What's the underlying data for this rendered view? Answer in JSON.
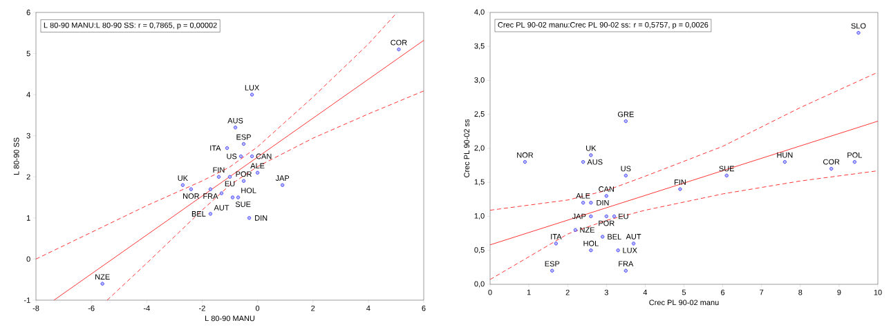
{
  "chart_data": [
    {
      "type": "scatter",
      "xlabel": "L 80-90 MANU",
      "ylabel": "L 80-90 SS",
      "xlim": [
        -8,
        6
      ],
      "ylim": [
        -1,
        6
      ],
      "xticks": [
        -8,
        -6,
        -4,
        -2,
        0,
        2,
        4,
        6
      ],
      "yticks": [
        -1,
        0,
        1,
        2,
        3,
        4,
        5,
        6
      ],
      "marker": "circle",
      "annotations": [
        "L 80-90 MANU:L 80-90 SS:    r = 0,7865, p = 0,00002",
        {
          "text": "COR",
          "x": 5.1,
          "y": 5.1
        },
        {
          "text": "LUX",
          "x": -0.2,
          "y": 4.0
        },
        {
          "text": "AUS",
          "x": -0.8,
          "y": 3.2
        },
        {
          "text": "ESP",
          "x": -0.5,
          "y": 2.8
        },
        {
          "text": "ITA",
          "x": -1.1,
          "y": 2.7
        },
        {
          "text": "US",
          "x": -0.6,
          "y": 2.5
        },
        {
          "text": "CAN",
          "x": -0.2,
          "y": 2.5
        },
        {
          "text": "ALE",
          "x": 0.0,
          "y": 2.1
        },
        {
          "text": "JAP",
          "x": 0.9,
          "y": 1.8
        },
        {
          "text": "FIN",
          "x": -1.4,
          "y": 2.0
        },
        {
          "text": "EU",
          "x": -1.0,
          "y": 2.0
        },
        {
          "text": "POR",
          "x": -0.5,
          "y": 1.9
        },
        {
          "text": "UK",
          "x": -2.7,
          "y": 1.8
        },
        {
          "text": "NOR",
          "x": -2.4,
          "y": 1.7
        },
        {
          "text": "FRA",
          "x": -1.7,
          "y": 1.7
        },
        {
          "text": "AUT",
          "x": -1.3,
          "y": 1.6
        },
        {
          "text": "SUE",
          "x": -0.9,
          "y": 1.5
        },
        {
          "text": "HOL",
          "x": -0.7,
          "y": 1.5
        },
        {
          "text": "BEL",
          "x": -1.7,
          "y": 1.1
        },
        {
          "text": "DIN",
          "x": -0.3,
          "y": 1.0
        },
        {
          "text": "NZE",
          "x": -5.6,
          "y": -0.6
        }
      ],
      "series": [
        {
          "color": "#3333ff",
          "x": [
            5.1,
            -0.2,
            -0.8,
            -0.5,
            -1.1,
            -0.6,
            -0.2,
            0.0,
            0.9,
            -1.4,
            -1.0,
            -0.5,
            -2.7,
            -2.4,
            -1.7,
            -1.3,
            -0.9,
            -0.7,
            -1.7,
            -0.3,
            -5.6
          ],
          "values": [
            5.1,
            4.0,
            3.2,
            2.8,
            2.7,
            2.5,
            2.5,
            2.1,
            1.8,
            2.0,
            2.0,
            1.9,
            1.8,
            1.7,
            1.7,
            1.6,
            1.5,
            1.5,
            1.1,
            1.0,
            -0.6
          ]
        },
        {
          "type": "line",
          "marker": "none",
          "line_style": "solid",
          "color": "#ff0000",
          "x": [
            -7.35,
            6
          ],
          "values": [
            -1,
            5.32
          ]
        },
        {
          "type": "line",
          "marker": "none",
          "line_style": "dashed",
          "color": "#ff0000",
          "x": [
            -8,
            -6,
            -4,
            -2,
            -1,
            0,
            2,
            4,
            5
          ],
          "values": [
            0.0,
            0.65,
            1.3,
            1.9,
            2.24,
            2.73,
            3.94,
            5.23,
            5.97
          ]
        },
        {
          "type": "line",
          "marker": "none",
          "line_style": "dashed",
          "color": "#ff0000",
          "x": [
            -5.43,
            -4,
            -2,
            -1,
            0,
            2,
            4,
            6
          ],
          "values": [
            -1,
            -0.1,
            1.19,
            1.8,
            2.25,
            2.94,
            3.53,
            4.09
          ]
        }
      ]
    },
    {
      "type": "scatter",
      "xlabel": "Crec PL 90-02 manu",
      "ylabel": "Crec PL 90-02 ss",
      "xlim": [
        0,
        10
      ],
      "ylim": [
        0,
        4
      ],
      "xticks": [
        0,
        1,
        2,
        3,
        4,
        5,
        6,
        7,
        8,
        9,
        10
      ],
      "yticks": [
        {
          "value": 0,
          "label": "0,0"
        },
        {
          "value": 0.5,
          "label": "0,5"
        },
        {
          "value": 1,
          "label": "1,0"
        },
        {
          "value": 1.5,
          "label": "1,5"
        },
        {
          "value": 2,
          "label": "2,0"
        },
        {
          "value": 2.5,
          "label": "2,5"
        },
        {
          "value": 3,
          "label": "3,0"
        },
        {
          "value": 3.5,
          "label": "3,5"
        },
        {
          "value": 4,
          "label": "4,0"
        }
      ],
      "marker": "circle",
      "annotations": [
        "Crec PL 90-02 manu:Crec PL 90-02 ss:    r = 0,5757, p = 0,0026",
        {
          "text": "SLO",
          "x": 9.5,
          "y": 3.7
        },
        {
          "text": "GRE",
          "x": 3.5,
          "y": 2.4
        },
        {
          "text": "NOR",
          "x": 0.9,
          "y": 1.8
        },
        {
          "text": "AUS",
          "x": 2.4,
          "y": 1.8
        },
        {
          "text": "UK",
          "x": 2.6,
          "y": 1.9
        },
        {
          "text": "US",
          "x": 3.5,
          "y": 1.6
        },
        {
          "text": "HUN",
          "x": 7.6,
          "y": 1.8
        },
        {
          "text": "COR",
          "x": 8.8,
          "y": 1.7
        },
        {
          "text": "POL",
          "x": 9.4,
          "y": 1.8
        },
        {
          "text": "SUE",
          "x": 6.1,
          "y": 1.6
        },
        {
          "text": "FIN",
          "x": 4.9,
          "y": 1.4
        },
        {
          "text": "CAN",
          "x": 3.0,
          "y": 1.3
        },
        {
          "text": "ALE",
          "x": 2.4,
          "y": 1.2
        },
        {
          "text": "DIN",
          "x": 2.6,
          "y": 1.2
        },
        {
          "text": "JAP",
          "x": 2.6,
          "y": 1.0
        },
        {
          "text": "POR",
          "x": 3.0,
          "y": 1.0
        },
        {
          "text": "EU",
          "x": 3.2,
          "y": 1.0
        },
        {
          "text": "NZE",
          "x": 2.2,
          "y": 0.8
        },
        {
          "text": "BEL",
          "x": 2.9,
          "y": 0.7
        },
        {
          "text": "ITA",
          "x": 1.7,
          "y": 0.6
        },
        {
          "text": "AUT",
          "x": 3.7,
          "y": 0.6
        },
        {
          "text": "HOL",
          "x": 2.6,
          "y": 0.5
        },
        {
          "text": "LUX",
          "x": 3.3,
          "y": 0.5
        },
        {
          "text": "ESP",
          "x": 1.6,
          "y": 0.2
        },
        {
          "text": "FRA",
          "x": 3.5,
          "y": 0.2
        }
      ],
      "series": [
        {
          "color": "#3333ff",
          "x": [
            9.5,
            3.5,
            0.9,
            2.4,
            2.6,
            3.5,
            7.6,
            8.8,
            9.4,
            6.1,
            4.9,
            3.0,
            2.4,
            2.6,
            2.6,
            3.0,
            3.2,
            2.2,
            2.9,
            1.7,
            3.7,
            2.6,
            3.3,
            1.6,
            3.5
          ],
          "values": [
            3.7,
            2.4,
            1.8,
            1.8,
            1.9,
            1.6,
            1.8,
            1.7,
            1.8,
            1.6,
            1.4,
            1.3,
            1.2,
            1.2,
            1.0,
            1.0,
            1.0,
            0.8,
            0.7,
            0.6,
            0.6,
            0.5,
            0.5,
            0.2,
            0.2
          ]
        },
        {
          "type": "line",
          "marker": "none",
          "line_style": "solid",
          "color": "#ff0000",
          "x": [
            0,
            10
          ],
          "values": [
            0.58,
            2.4
          ]
        },
        {
          "type": "line",
          "marker": "none",
          "line_style": "dashed",
          "color": "#ff0000",
          "x": [
            0,
            2,
            3,
            4,
            6,
            8,
            10
          ],
          "values": [
            1.09,
            1.24,
            1.38,
            1.59,
            2.03,
            2.6,
            3.12
          ]
        },
        {
          "type": "line",
          "marker": "none",
          "line_style": "dashed",
          "color": "#ff0000",
          "x": [
            0,
            2,
            3,
            4,
            6,
            8,
            10
          ],
          "values": [
            0.07,
            0.74,
            0.94,
            1.09,
            1.33,
            1.52,
            1.67
          ]
        }
      ]
    }
  ]
}
